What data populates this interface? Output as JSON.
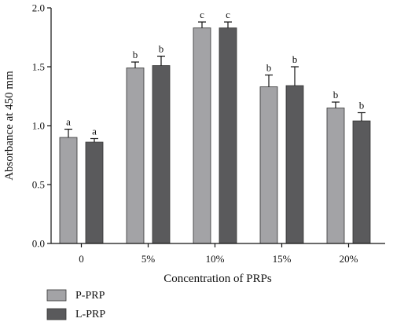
{
  "chart_data": {
    "type": "bar",
    "title": "",
    "xlabel": "Concentration of PRPs",
    "ylabel": "Absorbance at 450 mm",
    "ylim": [
      0,
      2.0
    ],
    "yticks": [
      "0.0",
      "0.5",
      "1.0",
      "1.5",
      "2.0"
    ],
    "categories": [
      "0",
      "5%",
      "10%",
      "15%",
      "20%"
    ],
    "legend_position": "bottom-left",
    "series": [
      {
        "name": "P-PRP",
        "color": "#a3a3a6",
        "values": [
          0.9,
          1.49,
          1.83,
          1.33,
          1.15
        ],
        "errors": [
          0.07,
          0.05,
          0.05,
          0.1,
          0.05
        ],
        "labels": [
          "a",
          "b",
          "c",
          "b",
          "b"
        ]
      },
      {
        "name": "L-PRP",
        "color": "#5a5a5c",
        "values": [
          0.86,
          1.51,
          1.83,
          1.34,
          1.04
        ],
        "errors": [
          0.03,
          0.08,
          0.05,
          0.16,
          0.07
        ],
        "labels": [
          "a",
          "b",
          "c",
          "b",
          "b"
        ]
      }
    ]
  }
}
